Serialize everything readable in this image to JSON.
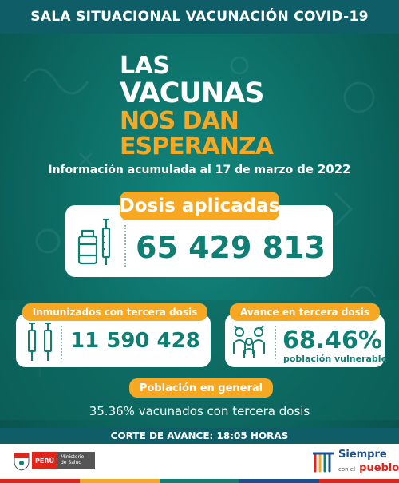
{
  "header": {
    "title": "SALA SITUACIONAL VACUNACIÓN COVID-19"
  },
  "slogan": {
    "line1": "LAS",
    "line2": "VACUNAS",
    "line3": "NOS DAN",
    "line4": "ESPERANZA"
  },
  "info": {
    "prefix": "Información acumulada al 17 de marzo",
    "connector": "de",
    "year": "2022"
  },
  "doses": {
    "label": "Dosis aplicadas",
    "value": "65 429 813",
    "icon": "vaccine-vial-syringe-icon"
  },
  "third_dose": {
    "label": "Inmunizados con tercera dosis",
    "value": "11 590 428",
    "icon": "syringes-icon"
  },
  "progress": {
    "label": "Avance en tercera dosis",
    "value": "68.46%",
    "sublabel": "población vulnerable",
    "icon": "family-icon"
  },
  "population": {
    "label": "Población en general",
    "text": "35.36% vacunados con tercera dosis"
  },
  "cutoff": {
    "text": "CORTE DE AVANCE: 18:05 HORAS"
  },
  "footer": {
    "country": "PERÚ",
    "ministry_line1": "Ministerio",
    "ministry_line2": "de Salud",
    "brand_line1": "Siempre",
    "brand_small": "con el",
    "brand_line2": "pueblo"
  },
  "colors": {
    "teal": "#0f7f73",
    "orange": "#f7a823",
    "dark_teal": "#0f5d67",
    "red": "#e2231a"
  }
}
